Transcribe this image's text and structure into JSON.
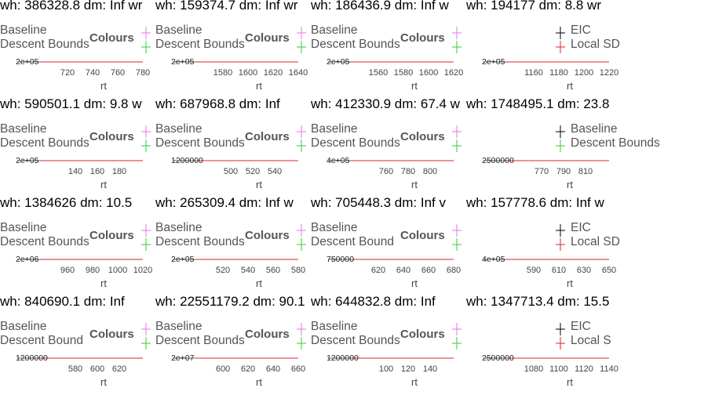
{
  "chart_data": [
    {
      "type": "line",
      "title": "wh: 386328.8 dm: Inf wr",
      "legend": [
        "Baseline",
        "Descent Bounds"
      ],
      "legend_title": "Colours",
      "key_colors": [
        "#e377e3",
        "#33cc33"
      ],
      "ytick_label": "2e+05",
      "xticks": [
        "720",
        "740",
        "760",
        "780"
      ],
      "xlabel": "rt"
    },
    {
      "type": "line",
      "title": "wh: 159374.7 dm: Inf wr",
      "legend": [
        "Baseline",
        "Descent Bounds"
      ],
      "legend_title": "Colours",
      "key_colors": [
        "#e377e3",
        "#33cc33"
      ],
      "ytick_label": "2e+05",
      "xticks": [
        "1580",
        "1600",
        "1620",
        "1640"
      ],
      "xlabel": "rt"
    },
    {
      "type": "line",
      "title": "wh: 186436.9 dm: Inf w",
      "legend": [
        "Baseline",
        "Descent Bounds"
      ],
      "legend_title": "Colours",
      "key_colors": [
        "#e377e3",
        "#33cc33"
      ],
      "ytick_label": "2e+05",
      "xticks": [
        "1560",
        "1580",
        "1600",
        "1620"
      ],
      "xlabel": "rt"
    },
    {
      "type": "line",
      "title": "wh: 194177 dm: 8.8 wr",
      "legend": [
        "EIC",
        "Local SD"
      ],
      "legend_title": "",
      "key_colors": [
        "#000000",
        "#d62728"
      ],
      "ytick_label": "2e+05",
      "xticks": [
        "1160",
        "1180",
        "1200",
        "1220"
      ],
      "xlabel": "rt"
    },
    {
      "type": "line",
      "title": "wh: 590501.1 dm: 9.8 w",
      "legend": [
        "Baseline",
        "Descent Bounds"
      ],
      "legend_title": "Colours",
      "key_colors": [
        "#e377e3",
        "#33cc33"
      ],
      "ytick_label": "2e+05",
      "xticks": [
        "140",
        "160",
        "180"
      ],
      "xlabel": "rt"
    },
    {
      "type": "line",
      "title": "wh: 687968.8 dm: Inf",
      "legend": [
        "Baseline",
        "Descent Bounds"
      ],
      "legend_title": "Colours",
      "key_colors": [
        "#e377e3",
        "#33cc33"
      ],
      "ytick_label": "1200000",
      "xticks": [
        "500",
        "520",
        "540"
      ],
      "xlabel": "rt"
    },
    {
      "type": "line",
      "title": "wh: 412330.9 dm: 67.4 w",
      "legend": [
        "Baseline",
        "Descent Bounds"
      ],
      "legend_title": "Colours",
      "key_colors": [
        "#e377e3",
        "#33cc33"
      ],
      "ytick_label": "4e+05",
      "xticks": [
        "760",
        "780",
        "800"
      ],
      "xlabel": "rt"
    },
    {
      "type": "line",
      "title": "wh: 1748495.1 dm: 23.8",
      "legend": [
        "Baseline",
        "Descent Bounds"
      ],
      "legend_title": "",
      "key_colors": [
        "#000000",
        "#33cc33"
      ],
      "ytick_label": "2500000",
      "xticks": [
        "770",
        "790",
        "810"
      ],
      "xlabel": "rt"
    },
    {
      "type": "line",
      "title": "wh: 1384626 dm: 10.5",
      "legend": [
        "Baseline",
        "Descent Bounds"
      ],
      "legend_title": "Colours",
      "key_colors": [
        "#e377e3",
        "#33cc33"
      ],
      "ytick_label": "2e+06",
      "xticks": [
        "960",
        "980",
        "1000",
        "1020"
      ],
      "xlabel": "rt"
    },
    {
      "type": "line",
      "title": "wh: 265309.4 dm: Inf w",
      "legend": [
        "Baseline",
        "Descent Bounds"
      ],
      "legend_title": "Colours",
      "key_colors": [
        "#e377e3",
        "#33cc33"
      ],
      "ytick_label": "2e+05",
      "xticks": [
        "520",
        "540",
        "560",
        "580"
      ],
      "xlabel": "rt"
    },
    {
      "type": "line",
      "title": "wh: 705448.3 dm: Inf v",
      "legend": [
        "Baseline",
        "Descent Bound"
      ],
      "legend_title": "Colours",
      "key_colors": [
        "#e377e3",
        "#33cc33"
      ],
      "ytick_label": "750000",
      "xticks": [
        "620",
        "640",
        "660",
        "680"
      ],
      "xlabel": "rt"
    },
    {
      "type": "line",
      "title": "wh: 157778.6 dm: Inf w",
      "legend": [
        "EIC",
        "Local SD"
      ],
      "legend_title": "",
      "key_colors": [
        "#000000",
        "#d62728"
      ],
      "ytick_label": "4e+05",
      "xticks": [
        "590",
        "610",
        "630",
        "650"
      ],
      "xlabel": "rt"
    },
    {
      "type": "line",
      "title": "wh: 840690.1 dm: Inf",
      "legend": [
        "Baseline",
        "Descent Bound"
      ],
      "legend_title": "Colours",
      "key_colors": [
        "#e377e3",
        "#33cc33"
      ],
      "ytick_label": "1200000",
      "xticks": [
        "580",
        "600",
        "620"
      ],
      "xlabel": "rt"
    },
    {
      "type": "line",
      "title": "wh: 22551179.2 dm: 90.1",
      "legend": [
        "Baseline",
        "Descent Bounds"
      ],
      "legend_title": "Colours",
      "key_colors": [
        "#e377e3",
        "#33cc33"
      ],
      "ytick_label": "2e+07",
      "xticks": [
        "600",
        "620",
        "640",
        "660"
      ],
      "xlabel": "rt"
    },
    {
      "type": "line",
      "title": "wh: 644832.8 dm: Inf",
      "legend": [
        "Baseline",
        "Descent Bounds"
      ],
      "legend_title": "Colours",
      "key_colors": [
        "#e377e3",
        "#33cc33"
      ],
      "ytick_label": "1200000",
      "xticks": [
        "100",
        "120",
        "140"
      ],
      "xlabel": "rt"
    },
    {
      "type": "line",
      "title": "wh: 1347713.4 dm: 15.5",
      "legend": [
        "EIC",
        "Local S"
      ],
      "legend_title": "",
      "key_colors": [
        "#000000",
        "#d62728"
      ],
      "ytick_label": "2500000",
      "xticks": [
        "1080",
        "1100",
        "1120",
        "1140"
      ],
      "xlabel": "rt"
    }
  ]
}
